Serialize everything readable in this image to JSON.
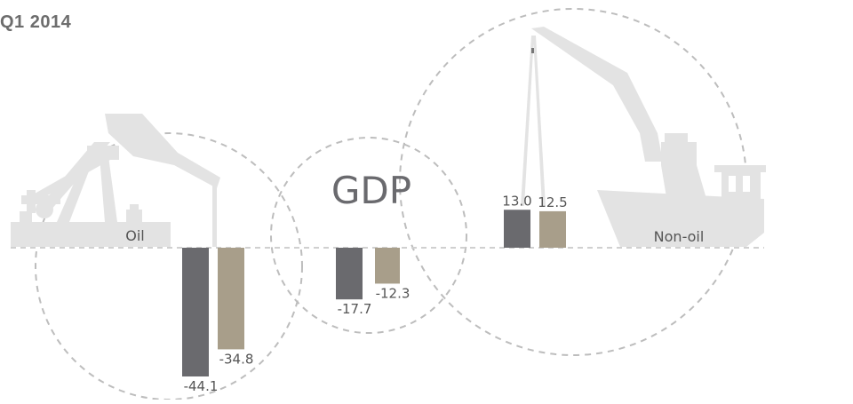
{
  "title": "Q1 2014",
  "colors": {
    "series_a": "#6a6a6e",
    "series_b": "#a89e8a",
    "illustration": "#e3e3e3",
    "dashed": "#bdbdbd",
    "label": "#555555"
  },
  "icons": {
    "oil": "oil-pumpjack-icon",
    "non_oil": "cargo-ship-crane-icon"
  },
  "chart_data": {
    "type": "bar",
    "categories": [
      "Oil",
      "GDP",
      "Non-oil"
    ],
    "series": [
      {
        "values": [
          -44.1,
          -17.7,
          13.0
        ]
      },
      {
        "values": [
          -34.8,
          -12.3,
          12.5
        ]
      }
    ],
    "value_labels": [
      [
        "-44.1",
        "-17.7",
        "13.0"
      ],
      [
        "-34.8",
        "-12.3",
        "12.5"
      ]
    ],
    "title": "Q1 2014",
    "xlabel": "",
    "ylabel": "",
    "ylim": [
      -50,
      20
    ],
    "grid": false,
    "legend": "none"
  }
}
